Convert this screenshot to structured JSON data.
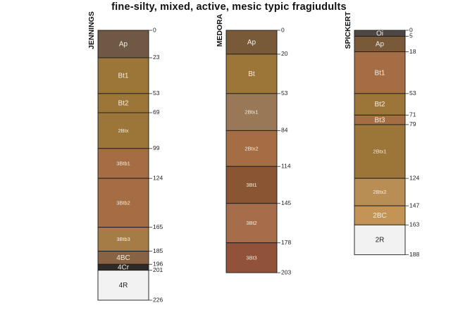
{
  "title": "fine-silty, mixed, active, mesic typic fragiudults",
  "profiles": [
    {
      "name": "JENNINGS",
      "horizons": [
        {
          "name": "Ap",
          "top": 0,
          "bottom": 23,
          "color": "#6f5844"
        },
        {
          "name": "Bt1",
          "top": 23,
          "bottom": 53,
          "color": "#9b7638"
        },
        {
          "name": "Bt2",
          "top": 53,
          "bottom": 69,
          "color": "#9b7638"
        },
        {
          "name": "2Btx",
          "top": 69,
          "bottom": 99,
          "color": "#9b7638"
        },
        {
          "name": "3Btb1",
          "top": 99,
          "bottom": 124,
          "color": "#a56d43"
        },
        {
          "name": "3Btb2",
          "top": 124,
          "bottom": 165,
          "color": "#a56d43"
        },
        {
          "name": "3Btb3",
          "top": 165,
          "bottom": 185,
          "color": "#a67c46"
        },
        {
          "name": "4BC",
          "top": 185,
          "bottom": 196,
          "color": "#876344"
        },
        {
          "name": "4Cr",
          "top": 196,
          "bottom": 201,
          "color": "#2e2a27"
        },
        {
          "name": "4R",
          "top": 201,
          "bottom": 226,
          "color": "#f2f2f2"
        }
      ]
    },
    {
      "name": "MEDORA",
      "horizons": [
        {
          "name": "Ap",
          "top": 0,
          "bottom": 20,
          "color": "#785a38"
        },
        {
          "name": "Bt",
          "top": 20,
          "bottom": 53,
          "color": "#9b7638"
        },
        {
          "name": "2Btx1",
          "top": 53,
          "bottom": 84,
          "color": "#987856"
        },
        {
          "name": "2Btx2",
          "top": 84,
          "bottom": 114,
          "color": "#a56d43"
        },
        {
          "name": "3Bt1",
          "top": 114,
          "bottom": 145,
          "color": "#8a5532"
        },
        {
          "name": "3Bt2",
          "top": 145,
          "bottom": 178,
          "color": "#a56d4a"
        },
        {
          "name": "3Bt3",
          "top": 178,
          "bottom": 203,
          "color": "#91523a"
        }
      ]
    },
    {
      "name": "SPICKERT",
      "horizons": [
        {
          "name": "Oi",
          "top": 0,
          "bottom": 5,
          "color": "#4e4845"
        },
        {
          "name": "Ap",
          "top": 5,
          "bottom": 18,
          "color": "#785a38"
        },
        {
          "name": "Bt1",
          "top": 18,
          "bottom": 53,
          "color": "#a56d43"
        },
        {
          "name": "Bt2",
          "top": 53,
          "bottom": 71,
          "color": "#9b7638"
        },
        {
          "name": "Bt3",
          "top": 71,
          "bottom": 79,
          "color": "#a56d43"
        },
        {
          "name": "2Btx1",
          "top": 79,
          "bottom": 124,
          "color": "#9b7638"
        },
        {
          "name": "2Btx2",
          "top": 124,
          "bottom": 147,
          "color": "#b98e55"
        },
        {
          "name": "2BC",
          "top": 147,
          "bottom": 163,
          "color": "#c39455"
        },
        {
          "name": "2R",
          "top": 163,
          "bottom": 188,
          "color": "#f2f2f2"
        }
      ]
    }
  ]
}
